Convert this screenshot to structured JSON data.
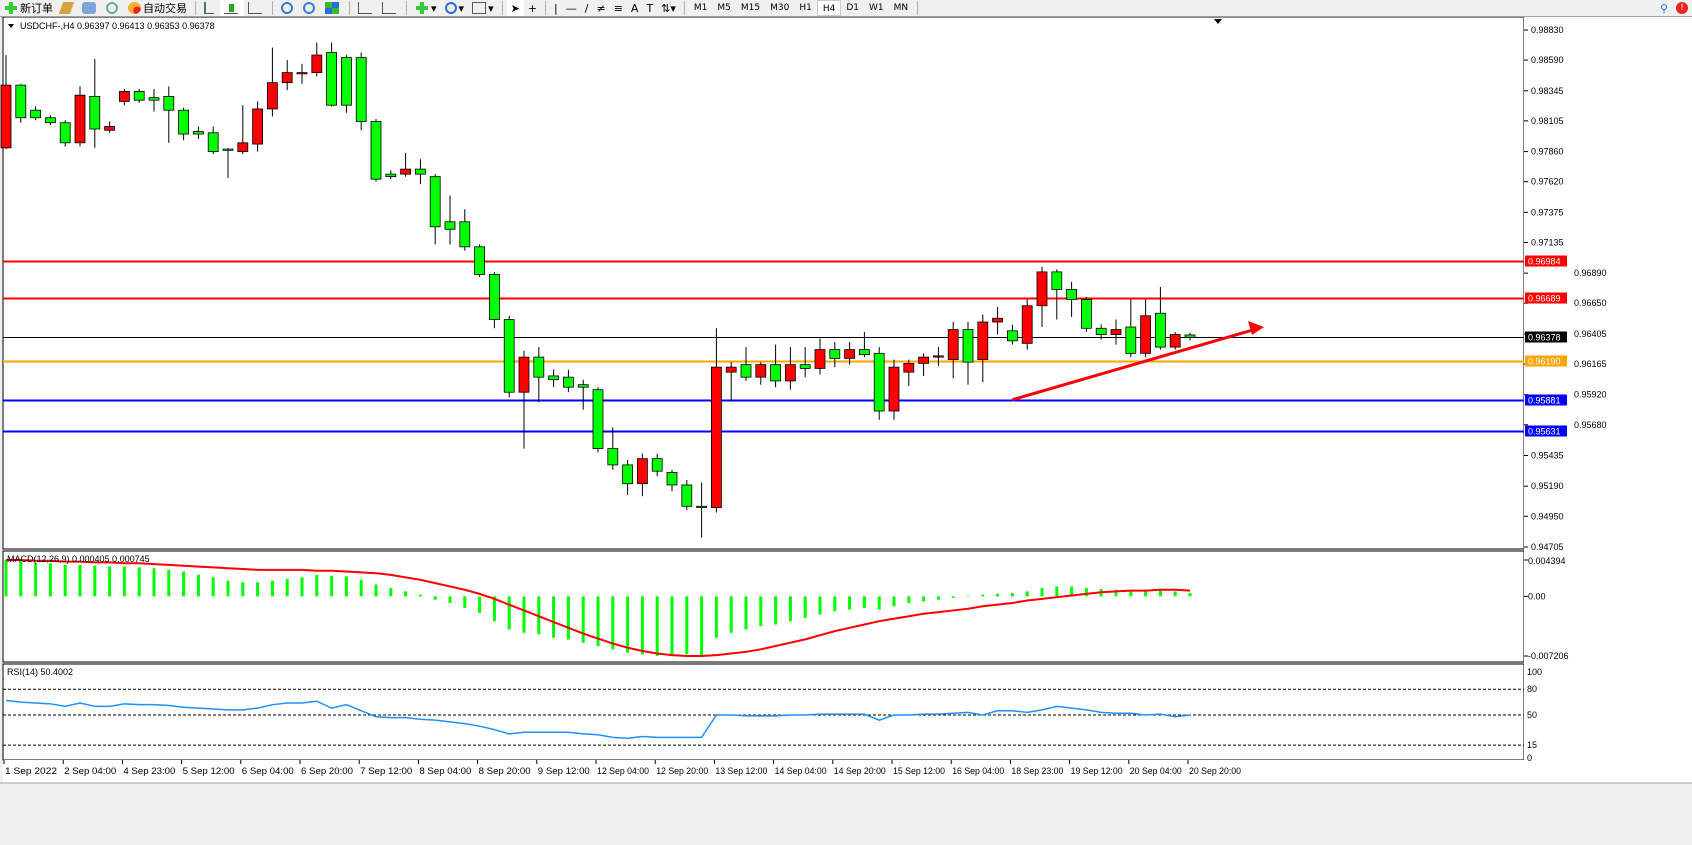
{
  "toolbar": {
    "new_order": "新订单",
    "auto_trading": "自动交易",
    "timeframes": [
      "M1",
      "M5",
      "M15",
      "M30",
      "H1",
      "H4",
      "D1",
      "W1",
      "MN"
    ],
    "active_timeframe": "H4",
    "icons": [
      "new-order-icon",
      "history-icon",
      "market-watch-icon",
      "signal-icon",
      "auto-trading-icon",
      "bar-chart-icon",
      "candle-chart-icon",
      "line-chart-icon",
      "zoom-in-icon",
      "zoom-out-icon",
      "tile-windows-icon",
      "chart-shift-icon",
      "autoscroll-icon",
      "indicators-icon",
      "periods-icon",
      "templates-icon",
      "cursor-icon",
      "crosshair-icon",
      "vertical-line-icon",
      "horizontal-line-icon",
      "trendline-icon",
      "equidistant-channel-icon",
      "fibonacci-icon",
      "text-icon",
      "text-label-icon",
      "arrows-icon",
      "search-icon",
      "notification-icon"
    ]
  },
  "chart": {
    "header": "USDCHF-,H4  0.96397 0.96413 0.96353 0.96378",
    "colors": {
      "bull": "#ff0000",
      "bear": "#00ff00",
      "grid_bg": "#ffffff",
      "macd_hist": "#00ff00",
      "macd_signal": "#ff0000",
      "rsi": "#1e90ff"
    }
  },
  "chart_data": [
    {
      "type": "candlestick",
      "symbol": "USDCHF-",
      "timeframe": "H4",
      "ylim": [
        0.94705,
        0.9883
      ],
      "yticks": [
        "0.98830",
        "0.98590",
        "0.98345",
        "0.98105",
        "0.97860",
        "0.97620",
        "0.97375",
        "0.97135",
        "0.96890",
        "0.96650",
        "0.96405",
        "0.96165",
        "0.95920",
        "0.95680",
        "0.95435",
        "0.95190",
        "0.94950",
        "0.94705"
      ],
      "xticks": [
        "1 Sep 2022",
        "2 Sep 04:00",
        "4 Sep 23:00",
        "5 Sep 12:00",
        "6 Sep 04:00",
        "6 Sep 20:00",
        "7 Sep 12:00",
        "8 Sep 04:00",
        "8 Sep 20:00",
        "9 Sep 12:00",
        "12 Sep 04:00",
        "12 Sep 20:00",
        "13 Sep 12:00",
        "14 Sep 04:00",
        "14 Sep 20:00",
        "15 Sep 12:00",
        "16 Sep 04:00",
        "18 Sep 23:00",
        "19 Sep 12:00",
        "20 Sep 04:00",
        "20 Sep 20:00"
      ],
      "ohlc": [
        [
          0.9789,
          0.9863,
          0.9788,
          0.9839
        ],
        [
          0.9839,
          0.984,
          0.9809,
          0.9813
        ],
        [
          0.9819,
          0.9822,
          0.9811,
          0.9813
        ],
        [
          0.9813,
          0.9815,
          0.9807,
          0.9809
        ],
        [
          0.9809,
          0.9811,
          0.979,
          0.9793
        ],
        [
          0.9793,
          0.9838,
          0.979,
          0.9831
        ],
        [
          0.983,
          0.986,
          0.9789,
          0.9804
        ],
        [
          0.9803,
          0.981,
          0.9801,
          0.9806
        ],
        [
          0.9826,
          0.9836,
          0.9823,
          0.9834
        ],
        [
          0.9834,
          0.9836,
          0.9825,
          0.9827
        ],
        [
          0.9829,
          0.9836,
          0.9818,
          0.9827
        ],
        [
          0.983,
          0.9838,
          0.9793,
          0.9819
        ],
        [
          0.9819,
          0.9821,
          0.9795,
          0.98
        ],
        [
          0.9802,
          0.9806,
          0.9796,
          0.98
        ],
        [
          0.9801,
          0.9806,
          0.9784,
          0.9786
        ],
        [
          0.9788,
          0.9789,
          0.9765,
          0.9787
        ],
        [
          0.9786,
          0.9823,
          0.9784,
          0.9793
        ],
        [
          0.9792,
          0.9826,
          0.9786,
          0.982
        ],
        [
          0.982,
          0.9869,
          0.9814,
          0.9841
        ],
        [
          0.9841,
          0.9859,
          0.9835,
          0.9849
        ],
        [
          0.9848,
          0.9856,
          0.984,
          0.9849
        ],
        [
          0.9849,
          0.9873,
          0.9846,
          0.9863
        ],
        [
          0.9865,
          0.9873,
          0.9822,
          0.9823
        ],
        [
          0.9861,
          0.9863,
          0.9817,
          0.9823
        ],
        [
          0.9861,
          0.9865,
          0.9803,
          0.981
        ],
        [
          0.981,
          0.9812,
          0.9762,
          0.9764
        ],
        [
          0.9768,
          0.9771,
          0.9764,
          0.9766
        ],
        [
          0.9768,
          0.9785,
          0.9766,
          0.9772
        ],
        [
          0.9772,
          0.978,
          0.976,
          0.9768
        ],
        [
          0.9766,
          0.9768,
          0.9712,
          0.9726
        ],
        [
          0.973,
          0.9751,
          0.9712,
          0.9724
        ],
        [
          0.973,
          0.974,
          0.9707,
          0.971
        ],
        [
          0.971,
          0.9712,
          0.9686,
          0.9688
        ],
        [
          0.9688,
          0.969,
          0.9645,
          0.9652
        ],
        [
          0.9652,
          0.9655,
          0.959,
          0.9594
        ],
        [
          0.9594,
          0.9627,
          0.9549,
          0.9622
        ],
        [
          0.9622,
          0.963,
          0.9586,
          0.9606
        ],
        [
          0.9607,
          0.9612,
          0.9598,
          0.9604
        ],
        [
          0.9606,
          0.9612,
          0.9594,
          0.9598
        ],
        [
          0.96,
          0.9604,
          0.958,
          0.9598
        ],
        [
          0.9596,
          0.9598,
          0.9546,
          0.9549
        ],
        [
          0.9549,
          0.9566,
          0.9532,
          0.9536
        ],
        [
          0.9536,
          0.954,
          0.9512,
          0.9521
        ],
        [
          0.9521,
          0.9545,
          0.9511,
          0.9541
        ],
        [
          0.9541,
          0.9545,
          0.9527,
          0.9531
        ],
        [
          0.953,
          0.9532,
          0.9515,
          0.952
        ],
        [
          0.952,
          0.9524,
          0.95,
          0.9503
        ],
        [
          0.9503,
          0.9522,
          0.9478,
          0.9502
        ],
        [
          0.9502,
          0.9645,
          0.9498,
          0.9614
        ],
        [
          0.961,
          0.9618,
          0.9587,
          0.9614
        ],
        [
          0.9616,
          0.963,
          0.9603,
          0.9606
        ],
        [
          0.9606,
          0.9618,
          0.96,
          0.9616
        ],
        [
          0.9616,
          0.9632,
          0.9598,
          0.9603
        ],
        [
          0.9603,
          0.963,
          0.9596,
          0.9616
        ],
        [
          0.9616,
          0.963,
          0.9606,
          0.9613
        ],
        [
          0.9613,
          0.9637,
          0.9608,
          0.9628
        ],
        [
          0.9628,
          0.9634,
          0.9614,
          0.9621
        ],
        [
          0.9621,
          0.9634,
          0.9616,
          0.9628
        ],
        [
          0.9628,
          0.9642,
          0.9622,
          0.9624
        ],
        [
          0.9625,
          0.963,
          0.9572,
          0.9579
        ],
        [
          0.9579,
          0.962,
          0.9572,
          0.9614
        ],
        [
          0.961,
          0.962,
          0.9599,
          0.9617
        ],
        [
          0.9617,
          0.9625,
          0.9607,
          0.9622
        ],
        [
          0.9622,
          0.963,
          0.9615,
          0.9623
        ],
        [
          0.962,
          0.965,
          0.9605,
          0.9644
        ],
        [
          0.9644,
          0.965,
          0.96,
          0.9618
        ],
        [
          0.962,
          0.9656,
          0.9602,
          0.965
        ],
        [
          0.965,
          0.9662,
          0.964,
          0.9653
        ],
        [
          0.9643,
          0.9648,
          0.9632,
          0.9635
        ],
        [
          0.9633,
          0.9668,
          0.9628,
          0.9663
        ],
        [
          0.9663,
          0.9694,
          0.9646,
          0.969
        ],
        [
          0.969,
          0.9692,
          0.9652,
          0.9676
        ],
        [
          0.9676,
          0.9682,
          0.9654,
          0.9668
        ],
        [
          0.9668,
          0.967,
          0.9642,
          0.9645
        ],
        [
          0.9645,
          0.9648,
          0.9636,
          0.964
        ],
        [
          0.964,
          0.9652,
          0.9632,
          0.9644
        ],
        [
          0.9646,
          0.9668,
          0.9622,
          0.9625
        ],
        [
          0.9625,
          0.9668,
          0.9622,
          0.9655
        ],
        [
          0.9657,
          0.9678,
          0.9628,
          0.963
        ],
        [
          0.963,
          0.9642,
          0.9628,
          0.964
        ],
        [
          0.96397,
          0.96413,
          0.96353,
          0.96378
        ]
      ],
      "horizontal_lines": [
        {
          "price": "0.96984",
          "color": "#ff0000"
        },
        {
          "price": "0.96689",
          "color": "#ff0000"
        },
        {
          "price": "0.96378",
          "color": "#000000"
        },
        {
          "price": "0.96190",
          "color": "#ffa500"
        },
        {
          "price": "0.95881",
          "color": "#0000ff"
        },
        {
          "price": "0.95631",
          "color": "#0000ff"
        }
      ],
      "annotation": {
        "type": "arrow",
        "color": "#ff0000",
        "from": {
          "bar": 68,
          "price": 0.9588
        },
        "to": {
          "bar": 85,
          "price": 0.9646
        }
      }
    },
    {
      "type": "bar+line",
      "label": "MACD(12,26,9) 0.000405 0.000745",
      "ylim": [
        -0.007206,
        0.004394
      ],
      "yticks": [
        "0.004394",
        "0.00",
        "-0.007206"
      ],
      "histogram": [
        0.0044,
        0.0042,
        0.004,
        0.004,
        0.0038,
        0.0038,
        0.0037,
        0.0036,
        0.0036,
        0.0035,
        0.0034,
        0.0032,
        0.003,
        0.0026,
        0.0023,
        0.0019,
        0.0017,
        0.0017,
        0.0019,
        0.0021,
        0.0023,
        0.0026,
        0.0025,
        0.0024,
        0.002,
        0.0014,
        0.001,
        0.0006,
        0.0002,
        -0.0004,
        -0.0008,
        -0.0014,
        -0.002,
        -0.003,
        -0.004,
        -0.0044,
        -0.0046,
        -0.005,
        -0.0052,
        -0.0056,
        -0.006,
        -0.0064,
        -0.0068,
        -0.007,
        -0.0072,
        -0.007,
        -0.007,
        -0.0072,
        -0.005,
        -0.0044,
        -0.004,
        -0.0036,
        -0.0034,
        -0.003,
        -0.0026,
        -0.0022,
        -0.0018,
        -0.0016,
        -0.0014,
        -0.0016,
        -0.0012,
        -0.0008,
        -0.0006,
        -0.0004,
        -0.0002,
        0,
        0.0002,
        0.0003,
        0.0004,
        0.0006,
        0.001,
        0.0012,
        0.0012,
        0.001,
        0.0009,
        0.0008,
        0.0007,
        0.0006,
        0.0007,
        0.0006,
        0.0004
      ],
      "signal": [
        0.0044,
        0.0044,
        0.0043,
        0.0043,
        0.0042,
        0.0042,
        0.0041,
        0.0041,
        0.004,
        0.004,
        0.0039,
        0.0038,
        0.0037,
        0.0036,
        0.0035,
        0.0034,
        0.0033,
        0.0032,
        0.0032,
        0.0032,
        0.0032,
        0.0031,
        0.0031,
        0.003,
        0.0029,
        0.0028,
        0.0026,
        0.0023,
        0.002,
        0.0016,
        0.0012,
        0.0008,
        0.0003,
        -0.0003,
        -0.001,
        -0.0017,
        -0.0024,
        -0.0031,
        -0.0038,
        -0.0045,
        -0.0051,
        -0.0057,
        -0.0062,
        -0.0066,
        -0.0069,
        -0.0071,
        -0.0072,
        -0.0072,
        -0.0071,
        -0.0069,
        -0.0067,
        -0.0064,
        -0.006,
        -0.0056,
        -0.0052,
        -0.0047,
        -0.0042,
        -0.0038,
        -0.0034,
        -0.003,
        -0.0027,
        -0.0024,
        -0.0021,
        -0.0019,
        -0.0017,
        -0.0015,
        -0.0012,
        -0.001,
        -0.0008,
        -0.0005,
        -0.0003,
        -0.0001,
        0.0001,
        0.0003,
        0.0005,
        0.0006,
        0.0007,
        0.0007,
        0.0008,
        0.0008,
        0.0007
      ]
    },
    {
      "type": "line",
      "label": "RSI(14) 50.4002",
      "ylim": [
        0,
        100
      ],
      "yticks": [
        "100",
        "80",
        "50",
        "15",
        "0"
      ],
      "levels": [
        80,
        50,
        15
      ],
      "values": [
        67,
        65,
        64,
        63,
        60,
        64,
        60,
        60,
        63,
        62,
        62,
        61,
        59,
        58,
        57,
        56,
        56,
        58,
        62,
        64,
        64,
        66,
        58,
        62,
        55,
        48,
        47,
        47,
        45,
        44,
        42,
        40,
        37,
        33,
        28,
        30,
        30,
        30,
        30,
        28,
        27,
        24,
        23,
        25,
        24,
        24,
        24,
        24,
        50,
        50,
        49,
        49,
        49,
        50,
        50,
        51,
        51,
        51,
        51,
        44,
        50,
        50,
        51,
        51,
        52,
        53,
        50,
        55,
        55,
        53,
        56,
        60,
        58,
        56,
        53,
        52,
        52,
        50,
        51,
        48,
        50
      ]
    }
  ]
}
